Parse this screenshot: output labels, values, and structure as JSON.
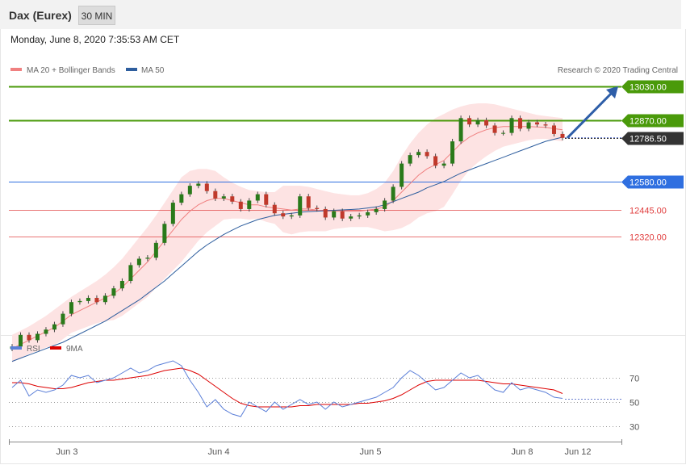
{
  "header": {
    "title": "Dax (Eurex)",
    "interval": "30 MIN"
  },
  "timestamp": "Monday, June 8, 2020 7:35:53 AM CET",
  "legend": {
    "ma20": {
      "label": "MA 20 + Bollinger Bands",
      "color": "#f08080"
    },
    "ma50": {
      "label": "MA 50",
      "color": "#2e5e9e"
    },
    "rsi": {
      "label": "RSI",
      "color": "#5b7fd8"
    },
    "ma9": {
      "label": "9MA",
      "color": "#dd0000"
    }
  },
  "copyright": "Research © 2020 Trading Central",
  "chart_data": [
    {
      "type": "candlestick",
      "title": "Dax (Eurex) 30 MIN",
      "ylim": [
        11720,
        13120
      ],
      "x_labels": [
        "Jun 3",
        "Jun 4",
        "Jun 5",
        "Jun 8",
        "Jun 12"
      ],
      "current_price": "12786.50",
      "levels": [
        {
          "value": 13030,
          "label": "13030.00",
          "kind": "resistance",
          "color": "#4a9a0a"
        },
        {
          "value": 12870,
          "label": "12870.00",
          "kind": "resistance",
          "color": "#4a9a0a"
        },
        {
          "value": 12580,
          "label": "12580.00",
          "kind": "pivot",
          "color": "#2f6fe0"
        },
        {
          "value": 12445,
          "label": "12445.00",
          "kind": "support",
          "color": "#e03c3c"
        },
        {
          "value": 12320,
          "label": "12320.00",
          "kind": "support",
          "color": "#e03c3c"
        }
      ],
      "closes": [
        11800,
        11855,
        11830,
        11860,
        11880,
        11905,
        11955,
        12010,
        12015,
        12030,
        12010,
        12040,
        12075,
        12110,
        12185,
        12215,
        12220,
        12290,
        12380,
        12480,
        12520,
        12560,
        12570,
        12535,
        12500,
        12510,
        12485,
        12450,
        12490,
        12520,
        12470,
        12430,
        12415,
        12420,
        12510,
        12455,
        12450,
        12410,
        12440,
        12405,
        12415,
        12420,
        12435,
        12450,
        12490,
        12555,
        12665,
        12705,
        12720,
        12700,
        12655,
        12665,
        12770,
        12880,
        12850,
        12870,
        12845,
        12810,
        12810,
        12880,
        12830,
        12860,
        12850,
        12845,
        12805,
        12786.5
      ],
      "ma20": [
        11790,
        11810,
        11830,
        11850,
        11870,
        11890,
        11920,
        11950,
        11970,
        11990,
        12010,
        12030,
        12050,
        12080,
        12120,
        12160,
        12200,
        12250,
        12300,
        12350,
        12400,
        12440,
        12470,
        12490,
        12500,
        12500,
        12490,
        12480,
        12470,
        12470,
        12460,
        12455,
        12450,
        12445,
        12450,
        12450,
        12445,
        12440,
        12440,
        12440,
        12440,
        12440,
        12445,
        12450,
        12460,
        12490,
        12530,
        12570,
        12610,
        12640,
        12660,
        12680,
        12720,
        12760,
        12790,
        12810,
        12825,
        12835,
        12840,
        12840,
        12840,
        12840,
        12838,
        12836,
        12830,
        12825
      ],
      "ma50": [
        11730,
        11745,
        11760,
        11775,
        11790,
        11805,
        11820,
        11840,
        11860,
        11880,
        11900,
        11920,
        11945,
        11970,
        11995,
        12020,
        12050,
        12080,
        12110,
        12145,
        12180,
        12215,
        12250,
        12280,
        12305,
        12330,
        12350,
        12370,
        12385,
        12400,
        12410,
        12420,
        12425,
        12430,
        12435,
        12438,
        12440,
        12442,
        12444,
        12446,
        12448,
        12450,
        12455,
        12460,
        12470,
        12485,
        12500,
        12515,
        12530,
        12550,
        12565,
        12580,
        12600,
        12620,
        12635,
        12650,
        12665,
        12680,
        12695,
        12710,
        12725,
        12740,
        12755,
        12770,
        12780,
        12790
      ],
      "bb_upper": [
        11855,
        11875,
        11895,
        11920,
        11945,
        11975,
        12005,
        12035,
        12060,
        12085,
        12110,
        12140,
        12175,
        12215,
        12265,
        12315,
        12365,
        12420,
        12480,
        12540,
        12600,
        12630,
        12640,
        12640,
        12630,
        12600,
        12575,
        12555,
        12540,
        12535,
        12530,
        12530,
        12560,
        12560,
        12560,
        12555,
        12545,
        12535,
        12525,
        12520,
        12515,
        12515,
        12525,
        12545,
        12575,
        12630,
        12700,
        12760,
        12810,
        12850,
        12880,
        12900,
        12920,
        12935,
        12945,
        12950,
        12950,
        12945,
        12935,
        12925,
        12915,
        12905,
        12895,
        12890,
        12885,
        12880
      ],
      "bb_lower": [
        11725,
        11745,
        11765,
        11780,
        11795,
        11805,
        11835,
        11865,
        11880,
        11895,
        11910,
        11920,
        11925,
        11945,
        11975,
        12005,
        12035,
        12080,
        12120,
        12160,
        12200,
        12250,
        12300,
        12340,
        12370,
        12400,
        12405,
        12405,
        12400,
        12405,
        12390,
        12380,
        12340,
        12330,
        12340,
        12345,
        12345,
        12345,
        12355,
        12360,
        12365,
        12365,
        12365,
        12355,
        12345,
        12350,
        12360,
        12380,
        12410,
        12430,
        12440,
        12460,
        12520,
        12585,
        12635,
        12670,
        12700,
        12725,
        12745,
        12755,
        12765,
        12775,
        12781,
        12782,
        12775,
        12770
      ]
    },
    {
      "type": "line",
      "title": "RSI",
      "ylim": [
        20,
        85
      ],
      "y_ticks": [
        30,
        50,
        70
      ],
      "x_labels": [
        "Jun 3",
        "Jun 4",
        "Jun 5",
        "Jun 8",
        "Jun 12"
      ],
      "rsi": [
        62,
        68,
        55,
        60,
        58,
        60,
        64,
        72,
        70,
        72,
        66,
        68,
        70,
        74,
        78,
        74,
        76,
        80,
        82,
        84,
        80,
        68,
        58,
        46,
        52,
        44,
        40,
        38,
        50,
        46,
        42,
        50,
        44,
        48,
        52,
        48,
        50,
        44,
        50,
        46,
        48,
        50,
        52,
        54,
        58,
        62,
        70,
        76,
        72,
        66,
        60,
        62,
        68,
        74,
        70,
        72,
        66,
        60,
        58,
        66,
        60,
        62,
        60,
        58,
        54,
        53
      ],
      "ma9": [
        66,
        66,
        65,
        63,
        62,
        61,
        61,
        62,
        64,
        66,
        67,
        68,
        68,
        69,
        70,
        71,
        72,
        74,
        76,
        77,
        78,
        76,
        73,
        68,
        63,
        58,
        53,
        49,
        47,
        46,
        46,
        46,
        46,
        46,
        47,
        47,
        48,
        48,
        48,
        48,
        48,
        49,
        49,
        50,
        51,
        53,
        56,
        60,
        64,
        67,
        68,
        68,
        68,
        68,
        68,
        68,
        67,
        66,
        65,
        65,
        64,
        63,
        62,
        61,
        60,
        57
      ]
    }
  ]
}
